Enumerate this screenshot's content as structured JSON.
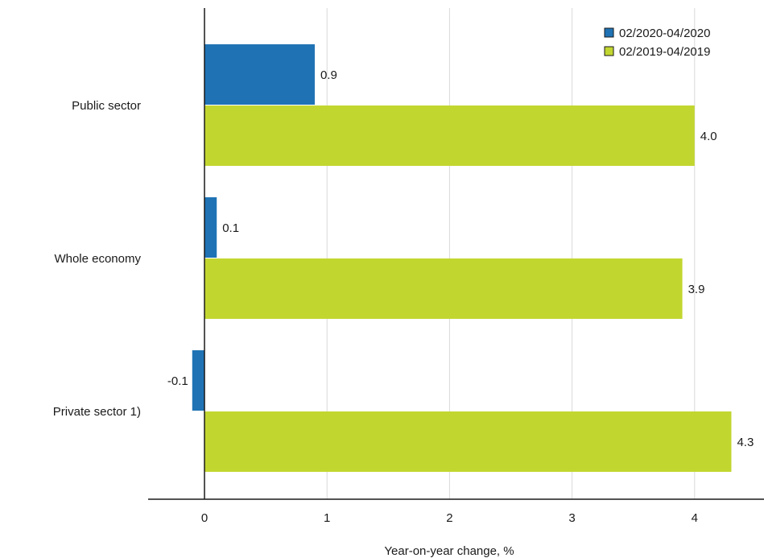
{
  "chart_data": {
    "type": "bar",
    "orientation": "horizontal",
    "title": "",
    "xlabel": "Year-on-year change, %",
    "ylabel": "",
    "categories": [
      "Public sector",
      "Whole economy",
      "Private sector 1)"
    ],
    "series": [
      {
        "name": "02/2020-04/2020",
        "color": "#1f73b4",
        "values": [
          0.9,
          0.1,
          -0.1
        ],
        "labels": [
          "0.9",
          "0.1",
          "-0.1"
        ]
      },
      {
        "name": "02/2019-04/2019",
        "color": "#c2d630",
        "values": [
          4.0,
          3.9,
          4.3
        ],
        "labels": [
          "4.0",
          "3.9",
          "4.3"
        ]
      }
    ],
    "xlim": [
      -0.45,
      4.5
    ],
    "xticks": [
      0,
      1,
      2,
      3,
      4
    ],
    "xtick_labels": [
      "0",
      "1",
      "2",
      "3",
      "4"
    ],
    "grid": true,
    "legend": "top-right"
  }
}
